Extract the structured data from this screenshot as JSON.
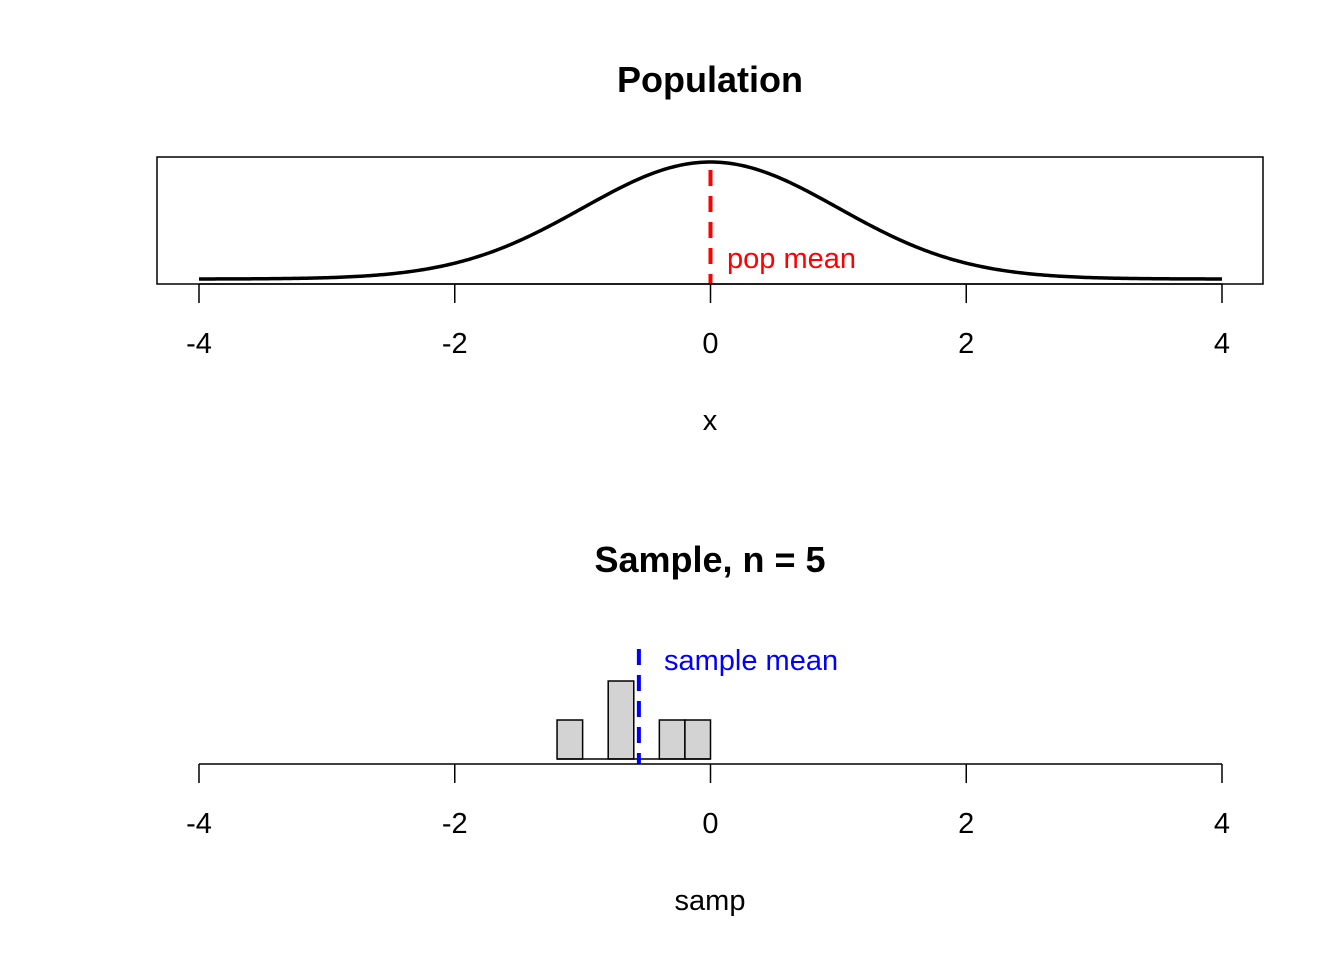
{
  "colors": {
    "curve": "#000000",
    "pop_mean": "#ff0000",
    "sample_mean": "#0000ff",
    "bar_fill": "#d3d3d3",
    "bar_stroke": "#000000",
    "axis": "#000000"
  },
  "chart_data": [
    {
      "type": "line",
      "title": "Population",
      "xlabel": "x",
      "ylabel": "",
      "xlim": [
        -4,
        4
      ],
      "x_ticks": [
        "-4",
        "-2",
        "0",
        "2",
        "4"
      ],
      "curve": "normal density, mean 0, sd 1",
      "framed": true,
      "grid": false,
      "reference_line": {
        "x": 0,
        "style": "dashed",
        "color": "red",
        "label": "pop mean"
      }
    },
    {
      "type": "bar",
      "title": "Sample, n = 5",
      "xlabel": "samp",
      "ylabel": "",
      "xlim": [
        -4,
        4
      ],
      "x_ticks": [
        "-4",
        "-2",
        "0",
        "2",
        "4"
      ],
      "framed": false,
      "grid": false,
      "bin_width": 0.2,
      "bins": [
        {
          "start": -1.2,
          "end": -1.0,
          "count": 1
        },
        {
          "start": -0.8,
          "end": -0.6,
          "count": 2
        },
        {
          "start": -0.4,
          "end": -0.2,
          "count": 1
        },
        {
          "start": -0.2,
          "end": 0.0,
          "count": 1
        }
      ],
      "reference_line": {
        "x": -0.56,
        "style": "dashed",
        "color": "blue",
        "label": "sample mean"
      }
    }
  ]
}
